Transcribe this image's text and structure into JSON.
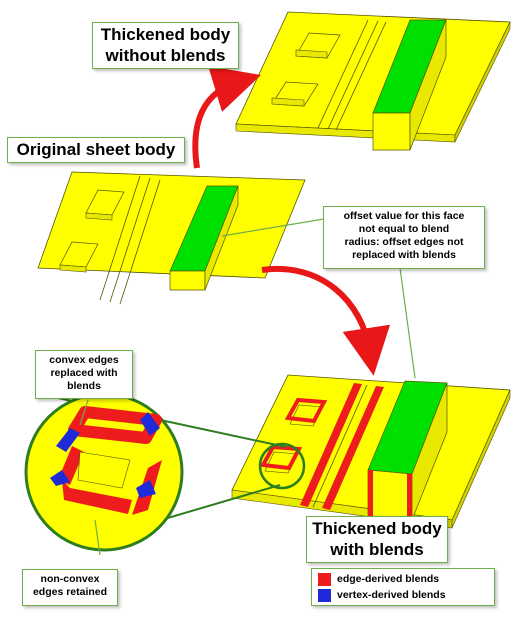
{
  "labels": {
    "without_blends": [
      "Thickened body",
      "without blends"
    ],
    "original": "Original sheet body",
    "offset_note": [
      "offset value for this face",
      "not equal to blend",
      "radius: offset edges not",
      "replaced with blends"
    ],
    "convex": [
      "convex edges",
      "replaced with",
      "blends"
    ],
    "nonconvex": [
      "non-convex",
      "edges retained"
    ],
    "with_blends": [
      "Thickened body",
      "with blends"
    ]
  },
  "legend": {
    "items": [
      {
        "label": "edge-derived blends",
        "color": "#ee1c1c"
      },
      {
        "label": "vertex-derived blends",
        "color": "#1f2bd8"
      }
    ]
  },
  "colors": {
    "body": "#ffff00",
    "body_edge": "#555500",
    "highlight_face": "#00e000",
    "arrow": "#e81818",
    "callout_border": "#6fae4a",
    "magnifier": "#2e7d1e"
  }
}
